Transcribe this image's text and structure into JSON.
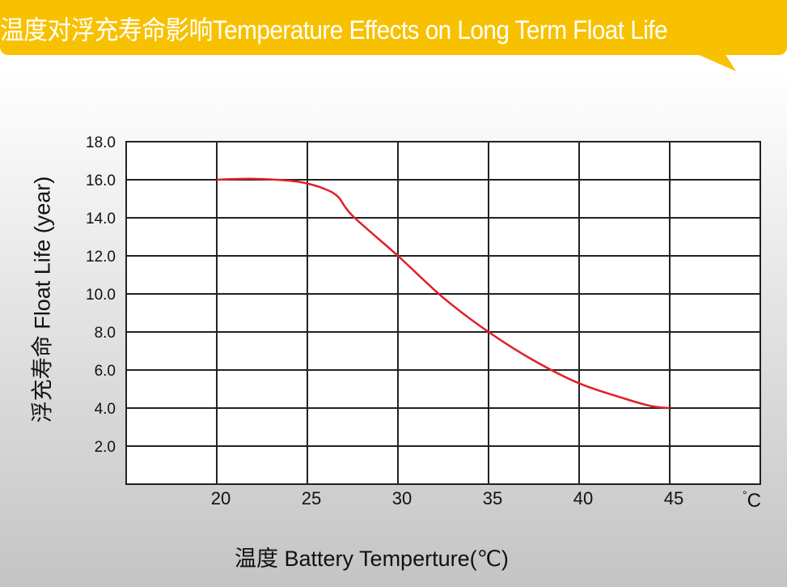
{
  "title": "温度对浮充寿命影响Temperature Effects on Long Term Float Life",
  "colors": {
    "banner": "#f8c100",
    "curve": "#e0202a",
    "grid": "#222222"
  },
  "chart_data": {
    "type": "line",
    "title": "温度对浮充寿命影响Temperature Effects on Long Term Float Life",
    "xlabel": "温度  Battery  Temperture(℃)",
    "ylabel": "浮充寿命  Float Life (year)",
    "x_unit": "°C",
    "xlim": [
      15,
      50
    ],
    "ylim": [
      0,
      18
    ],
    "x_ticks": [
      "20",
      "25",
      "30",
      "35",
      "40",
      "45"
    ],
    "y_ticks": [
      "2.0",
      "4.0",
      "6.0",
      "8.0",
      "10.0",
      "12.0",
      "14.0",
      "16.0",
      "18.0"
    ],
    "grid": true,
    "series": [
      {
        "x": [
          20,
          22,
          24,
          25,
          26,
          26.7,
          27.5,
          30,
          32.5,
          35,
          37.5,
          40,
          42.5,
          44,
          45
        ],
        "y": [
          16,
          16.05,
          15.95,
          15.8,
          15.5,
          15.1,
          14.1,
          12,
          9.8,
          8,
          6.5,
          5.3,
          4.5,
          4.1,
          4.0
        ]
      }
    ]
  }
}
